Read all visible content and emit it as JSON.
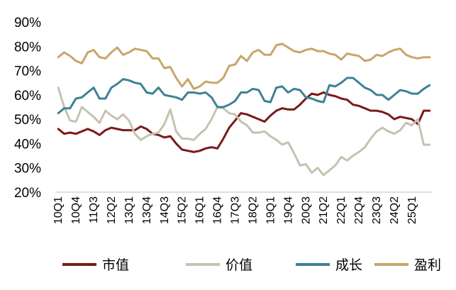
{
  "chart_data": {
    "type": "line",
    "title": "",
    "xlabel": "",
    "ylabel": "",
    "ylim": [
      20,
      90
    ],
    "y_ticks": [
      "20%",
      "30%",
      "40%",
      "50%",
      "60%",
      "70%",
      "80%",
      "90%"
    ],
    "y_tick_values": [
      20,
      30,
      40,
      50,
      60,
      70,
      80,
      90
    ],
    "x_tick_labels": [
      "10Q1",
      "10Q4",
      "11Q3",
      "12Q2",
      "13Q1",
      "13Q4",
      "14Q3",
      "15Q2",
      "16Q1",
      "16Q4",
      "17Q3",
      "18Q2",
      "19Q1",
      "19Q4",
      "20Q3",
      "21Q2",
      "22Q1",
      "22Q4",
      "23Q3",
      "24Q2",
      "25Q1"
    ],
    "x_tick_index": [
      0,
      3,
      6,
      9,
      12,
      15,
      18,
      21,
      24,
      27,
      30,
      33,
      36,
      39,
      42,
      45,
      48,
      51,
      54,
      57,
      60
    ],
    "n_points": 64,
    "grid": false,
    "legend_position": "bottom",
    "series": [
      {
        "name": "市值",
        "color": "#7b1a1a",
        "values": [
          46,
          44,
          44.5,
          44,
          45,
          46,
          45,
          43.5,
          45.5,
          46.5,
          46,
          45.5,
          45.5,
          45.5,
          47,
          46,
          44,
          43.5,
          42.5,
          43,
          40,
          37.5,
          37,
          36.5,
          37,
          38,
          38.5,
          38,
          42,
          46.5,
          49.5,
          52.5,
          52,
          51,
          50,
          49,
          51.5,
          53.5,
          54.5,
          54,
          54,
          56,
          58.5,
          60.5,
          60,
          61,
          60,
          59.5,
          58.5,
          58,
          56,
          55.5,
          54.5,
          53.5,
          53.5,
          53,
          52,
          50,
          51,
          50.5,
          50,
          48,
          53.5,
          53.5
        ]
      },
      {
        "name": "价值",
        "color": "#c4c3b1",
        "values": [
          63,
          55,
          49.5,
          49,
          55,
          53,
          51,
          48.5,
          53.5,
          51.5,
          50,
          52,
          49.5,
          44,
          41.5,
          43,
          44,
          44.5,
          48,
          54,
          45,
          42,
          42,
          41.5,
          44,
          46,
          50,
          55,
          54.5,
          52.5,
          52,
          49,
          47.5,
          44.5,
          44.5,
          45,
          43,
          41.5,
          39.5,
          40.5,
          36,
          31,
          31.5,
          28,
          30,
          27,
          29,
          31,
          34.5,
          33,
          35,
          36.5,
          38.5,
          42,
          45,
          46.5,
          45,
          44,
          45.5,
          48.5,
          47.5,
          50,
          39.5,
          39.5
        ]
      },
      {
        "name": "成长",
        "color": "#3d8295",
        "values": [
          52.5,
          54.5,
          54.5,
          58.5,
          59,
          61,
          63,
          58.5,
          58.5,
          63,
          64.5,
          66.5,
          66,
          65,
          64.5,
          61,
          60.5,
          63,
          60,
          59.5,
          59,
          58,
          61,
          61,
          60.5,
          61,
          59,
          55,
          55,
          56,
          57.5,
          61,
          61,
          62.5,
          62,
          57.5,
          57,
          63,
          63.5,
          61,
          62.5,
          62,
          59,
          58.5,
          57.5,
          57,
          64,
          63.5,
          65,
          67,
          67,
          65,
          63,
          62,
          60,
          60,
          58,
          60,
          62,
          61.5,
          60.5,
          60.5,
          62.5,
          64
        ]
      },
      {
        "name": "盈利",
        "color": "#c8a66a",
        "values": [
          75.5,
          77.5,
          76,
          74,
          73,
          77.5,
          78.5,
          75.5,
          75,
          77.5,
          79.5,
          76.5,
          77.5,
          79,
          78.5,
          78,
          75,
          75,
          71,
          71.5,
          67,
          63.5,
          66.5,
          62.5,
          63.5,
          65.5,
          65,
          65,
          67,
          72,
          72.5,
          76,
          74,
          77.5,
          78.5,
          76.5,
          76.5,
          80.5,
          81,
          79.5,
          78,
          77.5,
          78.5,
          79,
          78,
          78,
          77,
          76.5,
          74.5,
          77,
          76.5,
          76,
          74,
          74.5,
          76.5,
          76,
          77.5,
          78.5,
          79,
          76.5,
          75.5,
          75,
          75.5,
          75.5
        ]
      }
    ]
  }
}
